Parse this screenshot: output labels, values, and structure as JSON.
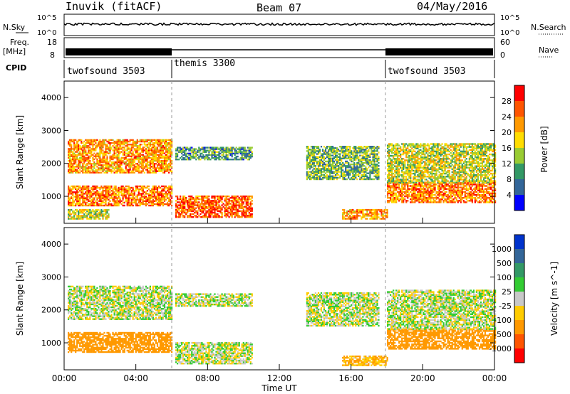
{
  "header": {
    "station": "Inuvik (fitACF)",
    "beam": "Beam 07",
    "date": "04/May/2016"
  },
  "strips": {
    "nsky_label": "N.Sky",
    "nsky_ticks": [
      "10^5",
      "10^0"
    ],
    "nsearch_label": "N.Search",
    "nsearch_ticks": [
      "10^5",
      "10^0"
    ],
    "freq_label_1": "Freq.",
    "freq_label_2": "[MHz]",
    "freq_ticks": [
      "18",
      "8"
    ],
    "nave_label": "Nave",
    "nave_ticks": [
      "60",
      "0"
    ],
    "cpid_label": "CPID",
    "cpid_segments": [
      {
        "name": "twofsound 3503",
        "start": 0,
        "end": 6
      },
      {
        "name": "themis 3300",
        "start": 6,
        "end": 18
      },
      {
        "name": "twofsound 3503",
        "start": 18,
        "end": 24
      }
    ]
  },
  "chart_data": [
    {
      "type": "heatmap",
      "panel": "power",
      "ylabel": "Slant Range [km]",
      "ylim": [
        180,
        4500
      ],
      "yticks": [
        "1000",
        "2000",
        "3000",
        "4000"
      ],
      "xlim": [
        0,
        24
      ],
      "colorbar_label": "Power [dB]",
      "colorbar_ticks": [
        "28",
        "24",
        "20",
        "16",
        "12",
        "8",
        "4"
      ],
      "colorbar_colors": [
        "#ff0000",
        "#ff5500",
        "#ff9900",
        "#ffdd00",
        "#99cc33",
        "#339966",
        "#336699",
        "#0000ff"
      ],
      "echo_regions": [
        {
          "t": [
            0.2,
            6.0
          ],
          "r": [
            1700,
            2700
          ],
          "level": 20
        },
        {
          "t": [
            0.2,
            6.0
          ],
          "r": [
            700,
            1300
          ],
          "level": 22
        },
        {
          "t": [
            0.2,
            2.5
          ],
          "r": [
            300,
            600
          ],
          "level": 14
        },
        {
          "t": [
            6.2,
            10.5
          ],
          "r": [
            350,
            1000
          ],
          "level": 24
        },
        {
          "t": [
            6.2,
            10.5
          ],
          "r": [
            2100,
            2500
          ],
          "level": 8
        },
        {
          "t": [
            13.5,
            17.5
          ],
          "r": [
            1500,
            2500
          ],
          "level": 10
        },
        {
          "t": [
            15.5,
            18.0
          ],
          "r": [
            300,
            600
          ],
          "level": 20
        },
        {
          "t": [
            18.0,
            24.0
          ],
          "r": [
            800,
            1400
          ],
          "level": 22
        },
        {
          "t": [
            18.0,
            24.0
          ],
          "r": [
            1400,
            2600
          ],
          "level": 14
        }
      ]
    },
    {
      "type": "heatmap",
      "panel": "velocity",
      "ylabel": "Slant Range [km]",
      "xlabel": "Time UT",
      "ylim": [
        180,
        4500
      ],
      "yticks": [
        "1000",
        "2000",
        "3000",
        "4000"
      ],
      "xlim": [
        0,
        24
      ],
      "xticks": [
        "00:00",
        "04:00",
        "08:00",
        "12:00",
        "16:00",
        "20:00",
        "00:00"
      ],
      "colorbar_label": "Velocity [m s^-1]",
      "colorbar_ticks": [
        "1000",
        "500",
        "100",
        "25",
        "-25",
        "-100",
        "-500",
        "-1000"
      ],
      "colorbar_colors": [
        "#0033cc",
        "#336699",
        "#339966",
        "#33cc33",
        "#c8c8c8",
        "#ffcc00",
        "#ff9900",
        "#ff5500",
        "#ff0000"
      ],
      "echo_regions": [
        {
          "t": [
            0.2,
            6.0
          ],
          "r": [
            1700,
            2700
          ],
          "velocity": 0
        },
        {
          "t": [
            0.2,
            6.0
          ],
          "r": [
            700,
            1300
          ],
          "velocity": -300
        },
        {
          "t": [
            6.2,
            10.5
          ],
          "r": [
            350,
            1000
          ],
          "velocity": 0
        },
        {
          "t": [
            6.2,
            10.5
          ],
          "r": [
            2100,
            2500
          ],
          "velocity": 0
        },
        {
          "t": [
            13.5,
            17.5
          ],
          "r": [
            1500,
            2500
          ],
          "velocity": 0
        },
        {
          "t": [
            15.5,
            18.0
          ],
          "r": [
            300,
            600
          ],
          "velocity": -100
        },
        {
          "t": [
            18.0,
            24.0
          ],
          "r": [
            800,
            1400
          ],
          "velocity": -300
        },
        {
          "t": [
            18.0,
            24.0
          ],
          "r": [
            1400,
            2600
          ],
          "velocity": 0
        }
      ]
    }
  ]
}
